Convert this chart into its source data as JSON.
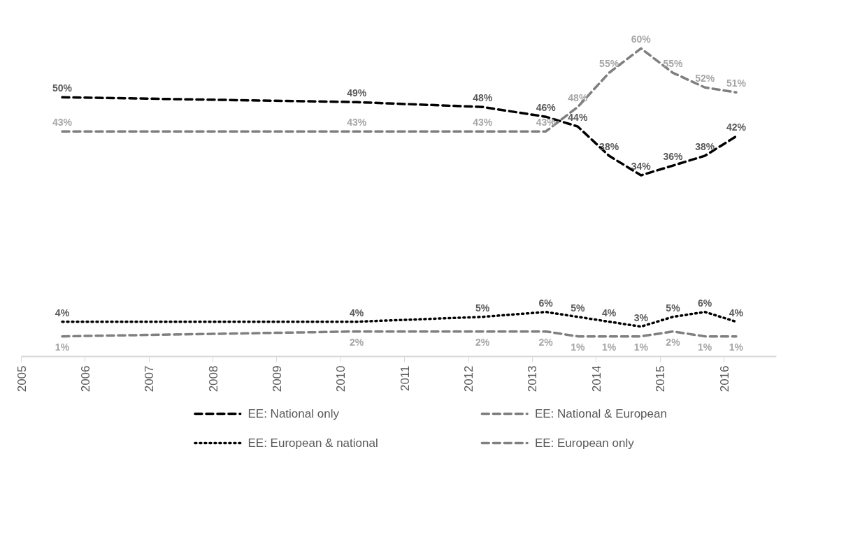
{
  "chart_data": {
    "type": "line",
    "x": [
      2005.64,
      2010.25,
      2012.22,
      2013.21,
      2013.71,
      2014.2,
      2014.7,
      2015.2,
      2015.7,
      2016.19
    ],
    "xlim": [
      2005,
      2016.82
    ],
    "xticks": [
      2005,
      2006,
      2007,
      2008,
      2009,
      2010,
      2011,
      2012,
      2013,
      2014,
      2015,
      2016
    ],
    "tick_labels": "x",
    "grid": false,
    "legend": "bottom",
    "series": [
      {
        "name": "EE: National only",
        "color": "#000000",
        "line_style": "dashed",
        "values": [
          50,
          49,
          48,
          46,
          44,
          38,
          34,
          36,
          38,
          42
        ],
        "value_labels": [
          "50%",
          "49%",
          "48%",
          "46%",
          "44%",
          "38%",
          "34%",
          "36%",
          "38%",
          "42%"
        ]
      },
      {
        "name": "EE: National & European",
        "color": "#7f7f7f",
        "line_style": "dashed",
        "values": [
          43,
          43,
          43,
          43,
          48,
          55,
          60,
          55,
          52,
          51
        ],
        "value_labels": [
          "43%",
          "43%",
          "43%",
          "43%",
          "48%",
          "55%",
          "60%",
          "55%",
          "52%",
          "51%"
        ]
      },
      {
        "name": "EE: European & national",
        "color": "#000000",
        "line_style": "dotted",
        "values": [
          4,
          4,
          5,
          6,
          5,
          4,
          3,
          5,
          6,
          4
        ],
        "value_labels": [
          "4%",
          "4%",
          "5%",
          "6%",
          "5%",
          "4%",
          "3%",
          "5%",
          "6%",
          "4%"
        ]
      },
      {
        "name": "EE: European only",
        "color": "#808080",
        "line_style": "dashed",
        "values": [
          1,
          2,
          2,
          2,
          1,
          1,
          1,
          2,
          1,
          1
        ],
        "value_labels": [
          "1%",
          "2%",
          "2%",
          "2%",
          "1%",
          "1%",
          "1%",
          "2%",
          "1%",
          "1%"
        ]
      }
    ]
  }
}
